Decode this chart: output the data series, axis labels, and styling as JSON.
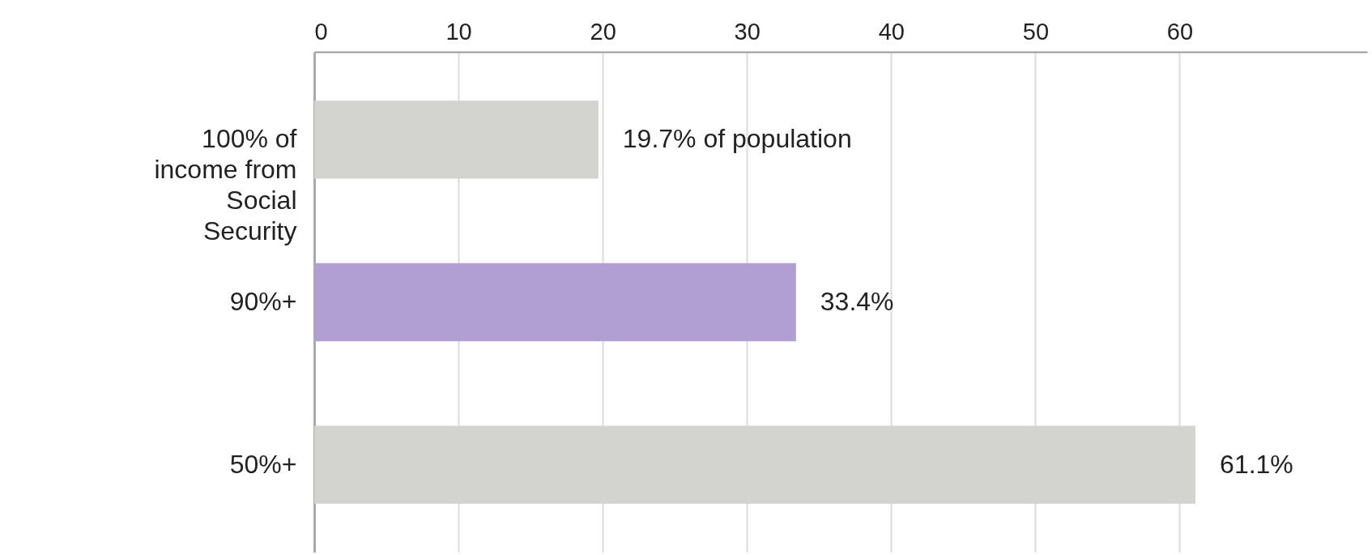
{
  "chart_data": {
    "type": "bar",
    "orientation": "horizontal",
    "categories": [
      "100% of income from Social Security",
      "90%+",
      "50%+"
    ],
    "values": [
      19.7,
      33.4,
      61.1
    ],
    "colors": [
      "#d3d3cf",
      "#b09fd0",
      "#d3d3cf"
    ],
    "value_labels": [
      "19.7% of population",
      "33.4%",
      "61.1%"
    ],
    "xlim": [
      0,
      73
    ],
    "xticks": [
      0,
      10,
      20,
      30,
      40,
      50,
      60
    ],
    "grid": "x"
  }
}
